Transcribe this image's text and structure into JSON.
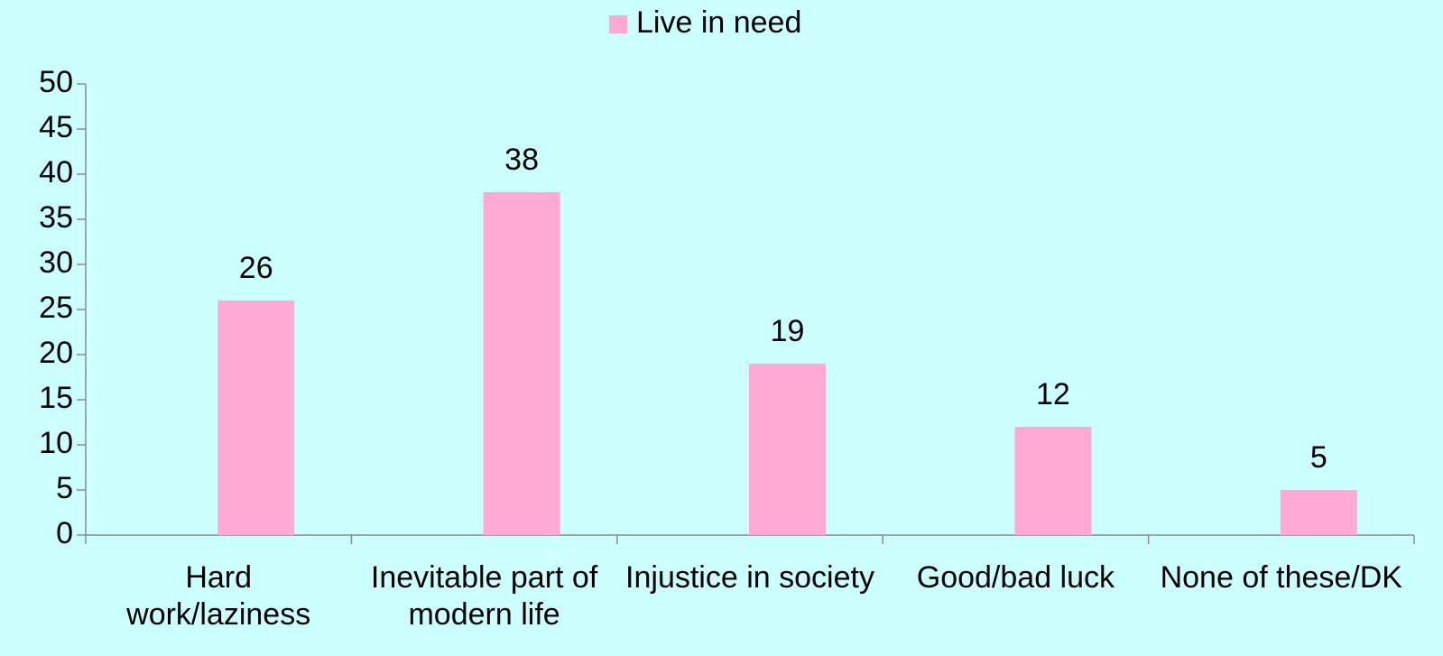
{
  "chart_data": {
    "type": "bar",
    "categories": [
      "Hard work/laziness",
      "Inevitable part of modern life",
      "Injustice in society",
      "Good/bad luck",
      "None of these/DK"
    ],
    "series": [
      {
        "name": "Live in need",
        "color": "#ffaad4",
        "values": [
          26,
          38,
          19,
          12,
          5
        ]
      }
    ],
    "ylim": [
      0,
      50
    ],
    "yticks": [
      0,
      5,
      10,
      15,
      20,
      25,
      30,
      35,
      40,
      45,
      50
    ],
    "grid": false,
    "legend": "top"
  }
}
